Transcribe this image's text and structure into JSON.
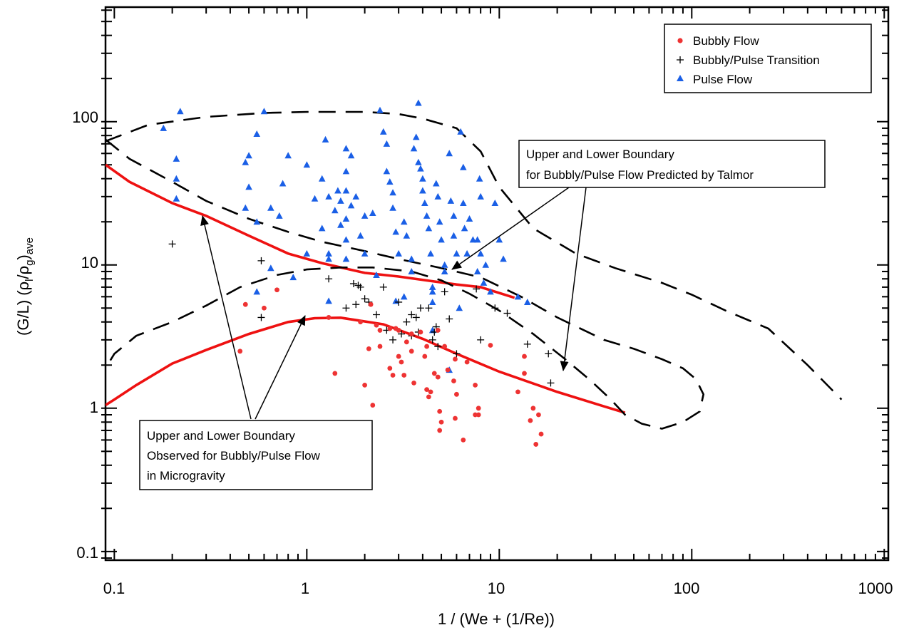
{
  "chart_data": {
    "type": "scatter",
    "title": "",
    "xlabel": "1 / (We + (1/Re))",
    "ylabel": {
      "main": "(G/L) (ρ",
      "sub1": "l",
      "mid": "/ρ",
      "sub2": "g",
      "close": ")",
      "sub3": "ave"
    },
    "xscale": "log",
    "yscale": "log",
    "xlim": [
      0.09,
      1050
    ],
    "ylim": [
      0.087,
      630
    ],
    "xticks": [
      "0.1",
      "1",
      "10",
      "100",
      "1000"
    ],
    "yticks": [
      "0.1",
      "1",
      "10",
      "100"
    ],
    "grid": false,
    "legend_position": "top-right",
    "legend": [
      {
        "label": "Bubbly Flow",
        "marker": "circle",
        "color": "#ee3333"
      },
      {
        "label": "Bubbly/Pulse Transition",
        "marker": "plus",
        "color": "#000000"
      },
      {
        "label": "Pulse Flow",
        "marker": "triangle",
        "color": "#1a5fe6"
      }
    ],
    "series": [
      {
        "name": "Pulse Flow",
        "marker": "triangle",
        "color": "#1a5fe6",
        "points": [
          [
            0.18,
            90
          ],
          [
            0.22,
            118
          ],
          [
            0.21,
            55
          ],
          [
            0.21,
            40
          ],
          [
            0.21,
            29
          ],
          [
            0.5,
            58
          ],
          [
            0.5,
            35
          ],
          [
            0.48,
            52
          ],
          [
            0.48,
            25
          ],
          [
            0.55,
            82
          ],
          [
            0.6,
            118
          ],
          [
            0.55,
            20
          ],
          [
            0.55,
            6.5
          ],
          [
            0.65,
            25
          ],
          [
            0.65,
            9.5
          ],
          [
            0.72,
            22
          ],
          [
            0.75,
            37
          ],
          [
            0.8,
            58
          ],
          [
            0.85,
            8.2
          ],
          [
            1.0,
            50
          ],
          [
            1.1,
            29
          ],
          [
            1.0,
            12
          ],
          [
            1.25,
            75
          ],
          [
            1.2,
            40
          ],
          [
            1.3,
            30
          ],
          [
            1.2,
            18
          ],
          [
            1.3,
            12
          ],
          [
            1.3,
            11
          ],
          [
            1.4,
            24
          ],
          [
            1.45,
            33
          ],
          [
            1.5,
            28
          ],
          [
            1.5,
            19
          ],
          [
            1.6,
            65
          ],
          [
            1.7,
            58
          ],
          [
            1.6,
            45
          ],
          [
            1.6,
            33
          ],
          [
            1.6,
            21
          ],
          [
            1.6,
            15
          ],
          [
            1.6,
            11
          ],
          [
            1.7,
            26
          ],
          [
            1.8,
            30
          ],
          [
            1.9,
            16
          ],
          [
            2.0,
            22
          ],
          [
            2.0,
            12
          ],
          [
            2.2,
            23
          ],
          [
            2.3,
            8.5
          ],
          [
            2.4,
            120
          ],
          [
            2.5,
            85
          ],
          [
            2.6,
            70
          ],
          [
            2.6,
            45
          ],
          [
            2.7,
            38
          ],
          [
            2.8,
            32
          ],
          [
            2.8,
            25
          ],
          [
            2.9,
            17
          ],
          [
            3.0,
            12
          ],
          [
            3.2,
            20
          ],
          [
            3.3,
            16
          ],
          [
            3.5,
            11
          ],
          [
            3.5,
            9
          ],
          [
            3.6,
            65
          ],
          [
            3.7,
            78
          ],
          [
            3.8,
            135
          ],
          [
            3.8,
            52
          ],
          [
            3.9,
            47
          ],
          [
            4.0,
            40
          ],
          [
            4.0,
            33
          ],
          [
            4.1,
            27
          ],
          [
            4.2,
            22
          ],
          [
            4.3,
            18
          ],
          [
            4.4,
            12
          ],
          [
            4.5,
            7
          ],
          [
            4.5,
            6.5
          ],
          [
            4.5,
            5.5
          ],
          [
            4.7,
            37
          ],
          [
            4.8,
            30
          ],
          [
            4.9,
            20
          ],
          [
            5.0,
            15
          ],
          [
            5.2,
            10
          ],
          [
            5.2,
            9
          ],
          [
            5.5,
            60
          ],
          [
            5.6,
            28
          ],
          [
            5.8,
            22
          ],
          [
            5.8,
            16
          ],
          [
            6.0,
            12
          ],
          [
            6.2,
            5
          ],
          [
            6.3,
            85
          ],
          [
            6.5,
            48
          ],
          [
            6.5,
            27
          ],
          [
            6.6,
            18
          ],
          [
            6.8,
            12
          ],
          [
            7.0,
            21
          ],
          [
            7.3,
            15
          ],
          [
            7.7,
            15
          ],
          [
            7.7,
            9
          ],
          [
            7.9,
            40
          ],
          [
            8.0,
            30
          ],
          [
            8.0,
            12
          ],
          [
            8.3,
            7.5
          ],
          [
            8.5,
            10
          ],
          [
            9.0,
            6.5
          ],
          [
            9.5,
            27
          ],
          [
            10.0,
            15
          ],
          [
            10.5,
            11
          ],
          [
            14.0,
            5.5
          ],
          [
            12.5,
            6.0
          ],
          [
            3.2,
            6.0
          ],
          [
            2.9,
            5.6
          ],
          [
            4.5,
            3.5
          ],
          [
            5.5,
            1.85
          ],
          [
            1.3,
            5.6
          ]
        ]
      },
      {
        "name": "Bubbly/Pulse Transition",
        "marker": "plus",
        "color": "#000000",
        "points": [
          [
            0.2,
            14
          ],
          [
            0.58,
            10.7
          ],
          [
            0.58,
            4.3
          ],
          [
            1.3,
            8.0
          ],
          [
            1.6,
            5.0
          ],
          [
            1.75,
            7.4
          ],
          [
            1.8,
            5.3
          ],
          [
            1.85,
            7.2
          ],
          [
            1.9,
            7.0
          ],
          [
            2.0,
            5.8
          ],
          [
            2.1,
            5.5
          ],
          [
            2.3,
            4.5
          ],
          [
            2.5,
            7.0
          ],
          [
            2.6,
            3.5
          ],
          [
            2.8,
            3.0
          ],
          [
            3.0,
            5.5
          ],
          [
            3.1,
            3.3
          ],
          [
            3.3,
            4.0
          ],
          [
            3.5,
            3.2
          ],
          [
            3.5,
            4.5
          ],
          [
            3.7,
            4.3
          ],
          [
            3.8,
            3.4
          ],
          [
            3.9,
            5.0
          ],
          [
            4.3,
            5.0
          ],
          [
            4.5,
            3.0
          ],
          [
            4.6,
            3.4
          ],
          [
            4.7,
            3.7
          ],
          [
            4.8,
            2.7
          ],
          [
            5.2,
            6.5
          ],
          [
            5.5,
            4.2
          ],
          [
            6.0,
            2.4
          ],
          [
            7.6,
            6.8
          ],
          [
            8.0,
            3.0
          ],
          [
            9.5,
            5.0
          ],
          [
            11.0,
            4.6
          ],
          [
            14.0,
            2.8
          ],
          [
            18.0,
            2.4
          ],
          [
            18.5,
            1.5
          ]
        ]
      },
      {
        "name": "Bubbly Flow",
        "marker": "circle",
        "color": "#ee3333",
        "points": [
          [
            0.45,
            2.5
          ],
          [
            0.48,
            5.3
          ],
          [
            0.6,
            5.0
          ],
          [
            0.7,
            6.7
          ],
          [
            1.3,
            4.3
          ],
          [
            1.4,
            1.75
          ],
          [
            1.9,
            4.0
          ],
          [
            2.0,
            1.45
          ],
          [
            2.1,
            2.6
          ],
          [
            2.15,
            5.3
          ],
          [
            2.2,
            1.05
          ],
          [
            2.3,
            3.8
          ],
          [
            2.4,
            3.5
          ],
          [
            2.4,
            2.7
          ],
          [
            2.7,
            3.6
          ],
          [
            2.7,
            1.9
          ],
          [
            2.8,
            1.7
          ],
          [
            2.9,
            3.6
          ],
          [
            3.0,
            3.5
          ],
          [
            3.0,
            2.3
          ],
          [
            3.1,
            2.1
          ],
          [
            3.2,
            1.7
          ],
          [
            3.3,
            2.9
          ],
          [
            3.5,
            2.5
          ],
          [
            3.5,
            3.3
          ],
          [
            3.6,
            1.5
          ],
          [
            3.9,
            3.4
          ],
          [
            4.1,
            2.3
          ],
          [
            4.2,
            2.7
          ],
          [
            4.2,
            1.35
          ],
          [
            4.3,
            1.2
          ],
          [
            4.4,
            1.3
          ],
          [
            4.6,
            1.75
          ],
          [
            4.8,
            3.5
          ],
          [
            4.8,
            1.65
          ],
          [
            4.9,
            0.95
          ],
          [
            5.0,
            0.8
          ],
          [
            4.9,
            0.7
          ],
          [
            5.2,
            2.7
          ],
          [
            5.4,
            1.85
          ],
          [
            5.8,
            1.55
          ],
          [
            5.9,
            2.2
          ],
          [
            5.9,
            0.85
          ],
          [
            6.0,
            1.25
          ],
          [
            6.5,
            0.6
          ],
          [
            6.8,
            2.1
          ],
          [
            7.5,
            1.45
          ],
          [
            7.5,
            0.9
          ],
          [
            7.8,
            1.0
          ],
          [
            7.8,
            0.9
          ],
          [
            9.0,
            2.75
          ],
          [
            12.5,
            1.3
          ],
          [
            13.5,
            1.75
          ],
          [
            13.5,
            2.3
          ],
          [
            14.5,
            0.82
          ],
          [
            15.0,
            1.0
          ],
          [
            15.5,
            0.56
          ],
          [
            16.0,
            0.9
          ],
          [
            16.5,
            0.66
          ]
        ]
      }
    ],
    "curves": [
      {
        "role": "observed upper boundary",
        "style": "solid",
        "color": "#ee1111",
        "points": [
          [
            0.09,
            50
          ],
          [
            0.12,
            38
          ],
          [
            0.2,
            27
          ],
          [
            0.3,
            22
          ],
          [
            0.5,
            16
          ],
          [
            0.8,
            12
          ],
          [
            1.2,
            10.3
          ],
          [
            2.0,
            8.8
          ],
          [
            3.0,
            8.3
          ],
          [
            4.5,
            7.7
          ],
          [
            6.0,
            7.3
          ],
          [
            8.0,
            7.0
          ],
          [
            12.0,
            5.9
          ]
        ]
      },
      {
        "role": "observed lower boundary",
        "style": "solid",
        "color": "#ee1111",
        "points": [
          [
            0.09,
            1.05
          ],
          [
            0.1,
            1.15
          ],
          [
            0.13,
            1.45
          ],
          [
            0.2,
            2.05
          ],
          [
            0.3,
            2.55
          ],
          [
            0.5,
            3.3
          ],
          [
            0.8,
            4.0
          ],
          [
            1.1,
            4.25
          ],
          [
            1.5,
            4.28
          ],
          [
            2.5,
            3.85
          ],
          [
            4.0,
            3.05
          ],
          [
            6.0,
            2.4
          ],
          [
            10.0,
            1.8
          ],
          [
            20.0,
            1.3
          ],
          [
            35.0,
            1.03
          ],
          [
            45.0,
            0.93
          ]
        ]
      },
      {
        "role": "Talmor outer boundary",
        "style": "dashed",
        "color": "#000000",
        "points": [
          [
            0.09,
            73
          ],
          [
            0.15,
            95
          ],
          [
            0.3,
            108
          ],
          [
            0.6,
            115
          ],
          [
            1.0,
            117
          ],
          [
            2.0,
            117
          ],
          [
            3.0,
            113
          ],
          [
            4.0,
            105
          ],
          [
            6.0,
            90
          ],
          [
            8.0,
            62
          ],
          [
            10.0,
            35
          ],
          [
            15.0,
            18
          ],
          [
            25.0,
            12
          ],
          [
            40.0,
            9.5
          ],
          [
            70.0,
            7.5
          ],
          [
            100.0,
            6.2
          ],
          [
            150.0,
            4.8
          ],
          [
            250.0,
            3.6
          ],
          [
            400.0,
            2.0
          ],
          [
            600.0,
            1.15
          ]
        ]
      },
      {
        "role": "Talmor upper boundary",
        "style": "dashed",
        "color": "#000000",
        "points": [
          [
            0.09,
            75
          ],
          [
            0.12,
            55
          ],
          [
            0.2,
            38
          ],
          [
            0.3,
            28
          ],
          [
            0.5,
            21
          ],
          [
            0.8,
            17
          ],
          [
            1.2,
            14.5
          ],
          [
            2.0,
            12.5
          ],
          [
            3.0,
            11
          ],
          [
            5.0,
            9.5
          ],
          [
            8.0,
            8.2
          ],
          [
            13.0,
            6.0
          ],
          [
            20.0,
            4.3
          ],
          [
            35.0,
            3.0
          ],
          [
            50.0,
            2.6
          ],
          [
            70.0,
            2.2
          ],
          [
            90.0,
            1.9
          ],
          [
            105.0,
            1.6
          ],
          [
            115.0,
            1.25
          ],
          [
            110.0,
            0.95
          ],
          [
            90.0,
            0.8
          ],
          [
            70.0,
            0.72
          ],
          [
            55.0,
            0.78
          ],
          [
            45.0,
            0.9
          ],
          [
            38.0,
            1.15
          ],
          [
            30.0,
            1.55
          ],
          [
            22.0,
            2.2
          ],
          [
            15.0,
            3.3
          ],
          [
            10.0,
            4.8
          ],
          [
            7.0,
            6.3
          ],
          [
            5.0,
            7.8
          ],
          [
            3.5,
            9.0
          ],
          [
            2.2,
            9.6
          ],
          [
            1.5,
            9.6
          ],
          [
            1.0,
            9.3
          ],
          [
            0.7,
            8.5
          ],
          [
            0.45,
            7.0
          ],
          [
            0.3,
            5.2
          ],
          [
            0.2,
            4.0
          ],
          [
            0.13,
            3.2
          ],
          [
            0.1,
            2.4
          ],
          [
            0.09,
            1.9
          ]
        ]
      }
    ],
    "annotations": [
      {
        "lines": [
          "Upper and Lower Boundary",
          "for Bubbly/Pulse Flow Predicted by Talmor"
        ]
      },
      {
        "lines": [
          "Upper and Lower Boundary",
          "Observed for Bubbly/Pulse Flow",
          "in Microgravity"
        ]
      }
    ]
  }
}
